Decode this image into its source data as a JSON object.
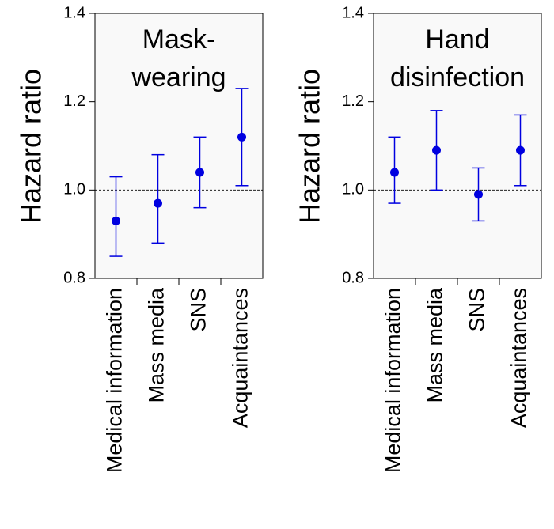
{
  "chart_data": [
    {
      "type": "errorbar",
      "title": [
        "Mask-",
        "wearing"
      ],
      "y_label": "Hazard ratio",
      "categories": [
        "Medical information",
        "Mass media",
        "SNS",
        "Acquaintances"
      ],
      "values": [
        0.93,
        0.97,
        1.04,
        1.12
      ],
      "lower": [
        0.85,
        0.88,
        0.96,
        1.01
      ],
      "upper": [
        1.03,
        1.08,
        1.12,
        1.23
      ],
      "color": "#0000e0",
      "ylim": [
        0.8,
        1.4
      ],
      "yticks": [
        0.8,
        {
          "value": 1,
          "label": "1.0"
        },
        1.2,
        1.4
      ],
      "reference_line": 1
    },
    {
      "type": "errorbar",
      "title": [
        "Hand",
        "disinfection"
      ],
      "y_label": "Hazard ratio",
      "categories": [
        "Medical information",
        "Mass media",
        "SNS",
        "Acquaintances"
      ],
      "values": [
        1.04,
        1.09,
        0.99,
        1.09
      ],
      "lower": [
        0.97,
        1.0,
        0.93,
        1.01
      ],
      "upper": [
        1.12,
        1.18,
        1.05,
        1.17
      ],
      "color": "#0000e0",
      "ylim": [
        0.8,
        1.4
      ],
      "yticks": [
        0.8,
        {
          "value": 1,
          "label": "1.0"
        },
        1.2,
        1.4
      ],
      "reference_line": 1
    }
  ]
}
